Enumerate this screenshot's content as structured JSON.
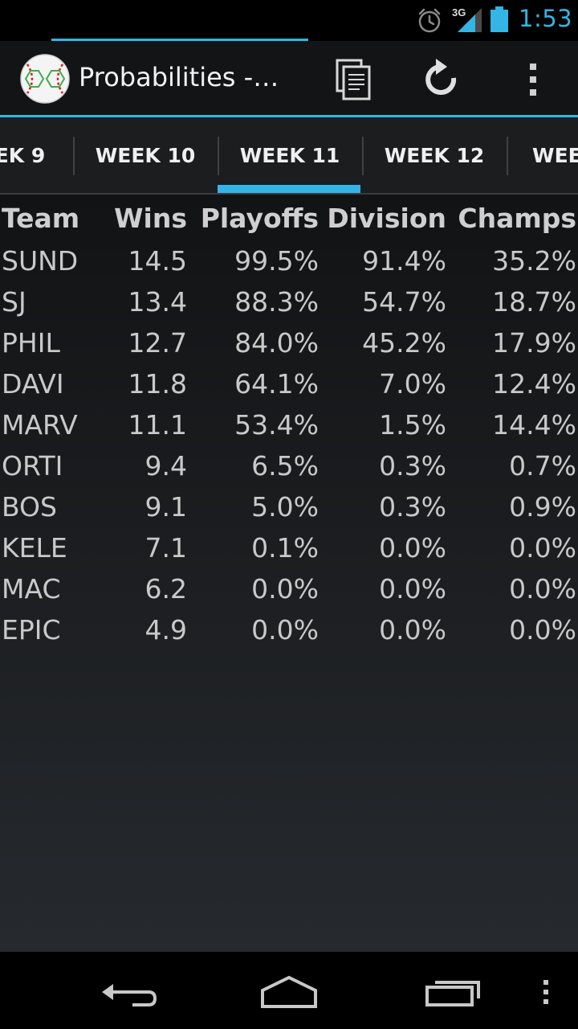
{
  "status_bar": {
    "time": "1:53",
    "network_type": "3G",
    "icons": [
      "alarm-icon",
      "signal-icon",
      "battery-icon"
    ],
    "accent_color": "#33b5e5"
  },
  "action_bar": {
    "title": "Probabilities -…",
    "logo": "baseball-icon",
    "actions": [
      "copy-icon",
      "refresh-icon",
      "overflow-menu-icon"
    ]
  },
  "tabs": {
    "items": [
      "EK 9",
      "WEEK 10",
      "WEEK 11",
      "WEEK 12",
      "WEE"
    ],
    "selected": "WEEK 11"
  },
  "table": {
    "columns": [
      "Team",
      "Wins",
      "Playoffs",
      "Division",
      "Champs"
    ],
    "rows": [
      [
        "SUND",
        "14.5",
        "99.5%",
        "91.4%",
        "35.2%"
      ],
      [
        "SJ",
        "13.4",
        "88.3%",
        "54.7%",
        "18.7%"
      ],
      [
        "PHIL",
        "12.7",
        "84.0%",
        "45.2%",
        "17.9%"
      ],
      [
        "DAVI",
        "11.8",
        "64.1%",
        "7.0%",
        "12.4%"
      ],
      [
        "MARV",
        "11.1",
        "53.4%",
        "1.5%",
        "14.4%"
      ],
      [
        "ORTI",
        "9.4",
        "6.5%",
        "0.3%",
        "0.7%"
      ],
      [
        "BOS",
        "9.1",
        "5.0%",
        "0.3%",
        "0.9%"
      ],
      [
        "KELE",
        "7.1",
        "0.1%",
        "0.0%",
        "0.0%"
      ],
      [
        "MAC",
        "6.2",
        "0.0%",
        "0.0%",
        "0.0%"
      ],
      [
        "EPIC",
        "4.9",
        "0.0%",
        "0.0%",
        "0.0%"
      ]
    ]
  },
  "nav_bar": {
    "buttons": [
      "back-icon",
      "home-icon",
      "recents-icon",
      "menu-icon"
    ]
  }
}
